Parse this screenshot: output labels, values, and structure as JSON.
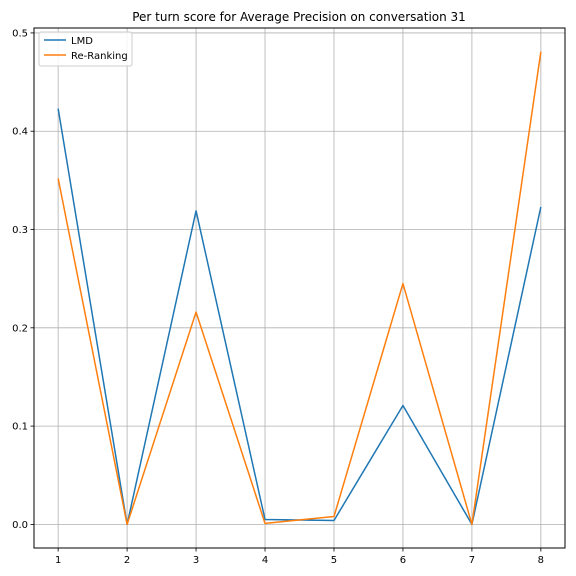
{
  "chart_data": {
    "type": "line",
    "title": "Per turn score for Average Precision on conversation 31",
    "xlabel": "",
    "ylabel": "",
    "x": [
      1,
      2,
      3,
      4,
      5,
      6,
      7,
      8
    ],
    "xticks": [
      "1",
      "2",
      "3",
      "4",
      "5",
      "6",
      "7",
      "8"
    ],
    "yticks": [
      "0.0",
      "0.1",
      "0.2",
      "0.3",
      "0.4",
      "0.5"
    ],
    "xlim": [
      0.65,
      8.35
    ],
    "ylim": [
      -0.024,
      0.505
    ],
    "grid": true,
    "legend_position": "upper-left",
    "series": [
      {
        "name": "LMD",
        "color": "#1f77b4",
        "values": [
          0.423,
          0.0,
          0.319,
          0.005,
          0.004,
          0.121,
          0.0,
          0.323
        ]
      },
      {
        "name": "Re-Ranking",
        "color": "#ff7f0e",
        "values": [
          0.352,
          0.0,
          0.216,
          0.001,
          0.008,
          0.245,
          0.0,
          0.481
        ]
      }
    ]
  }
}
